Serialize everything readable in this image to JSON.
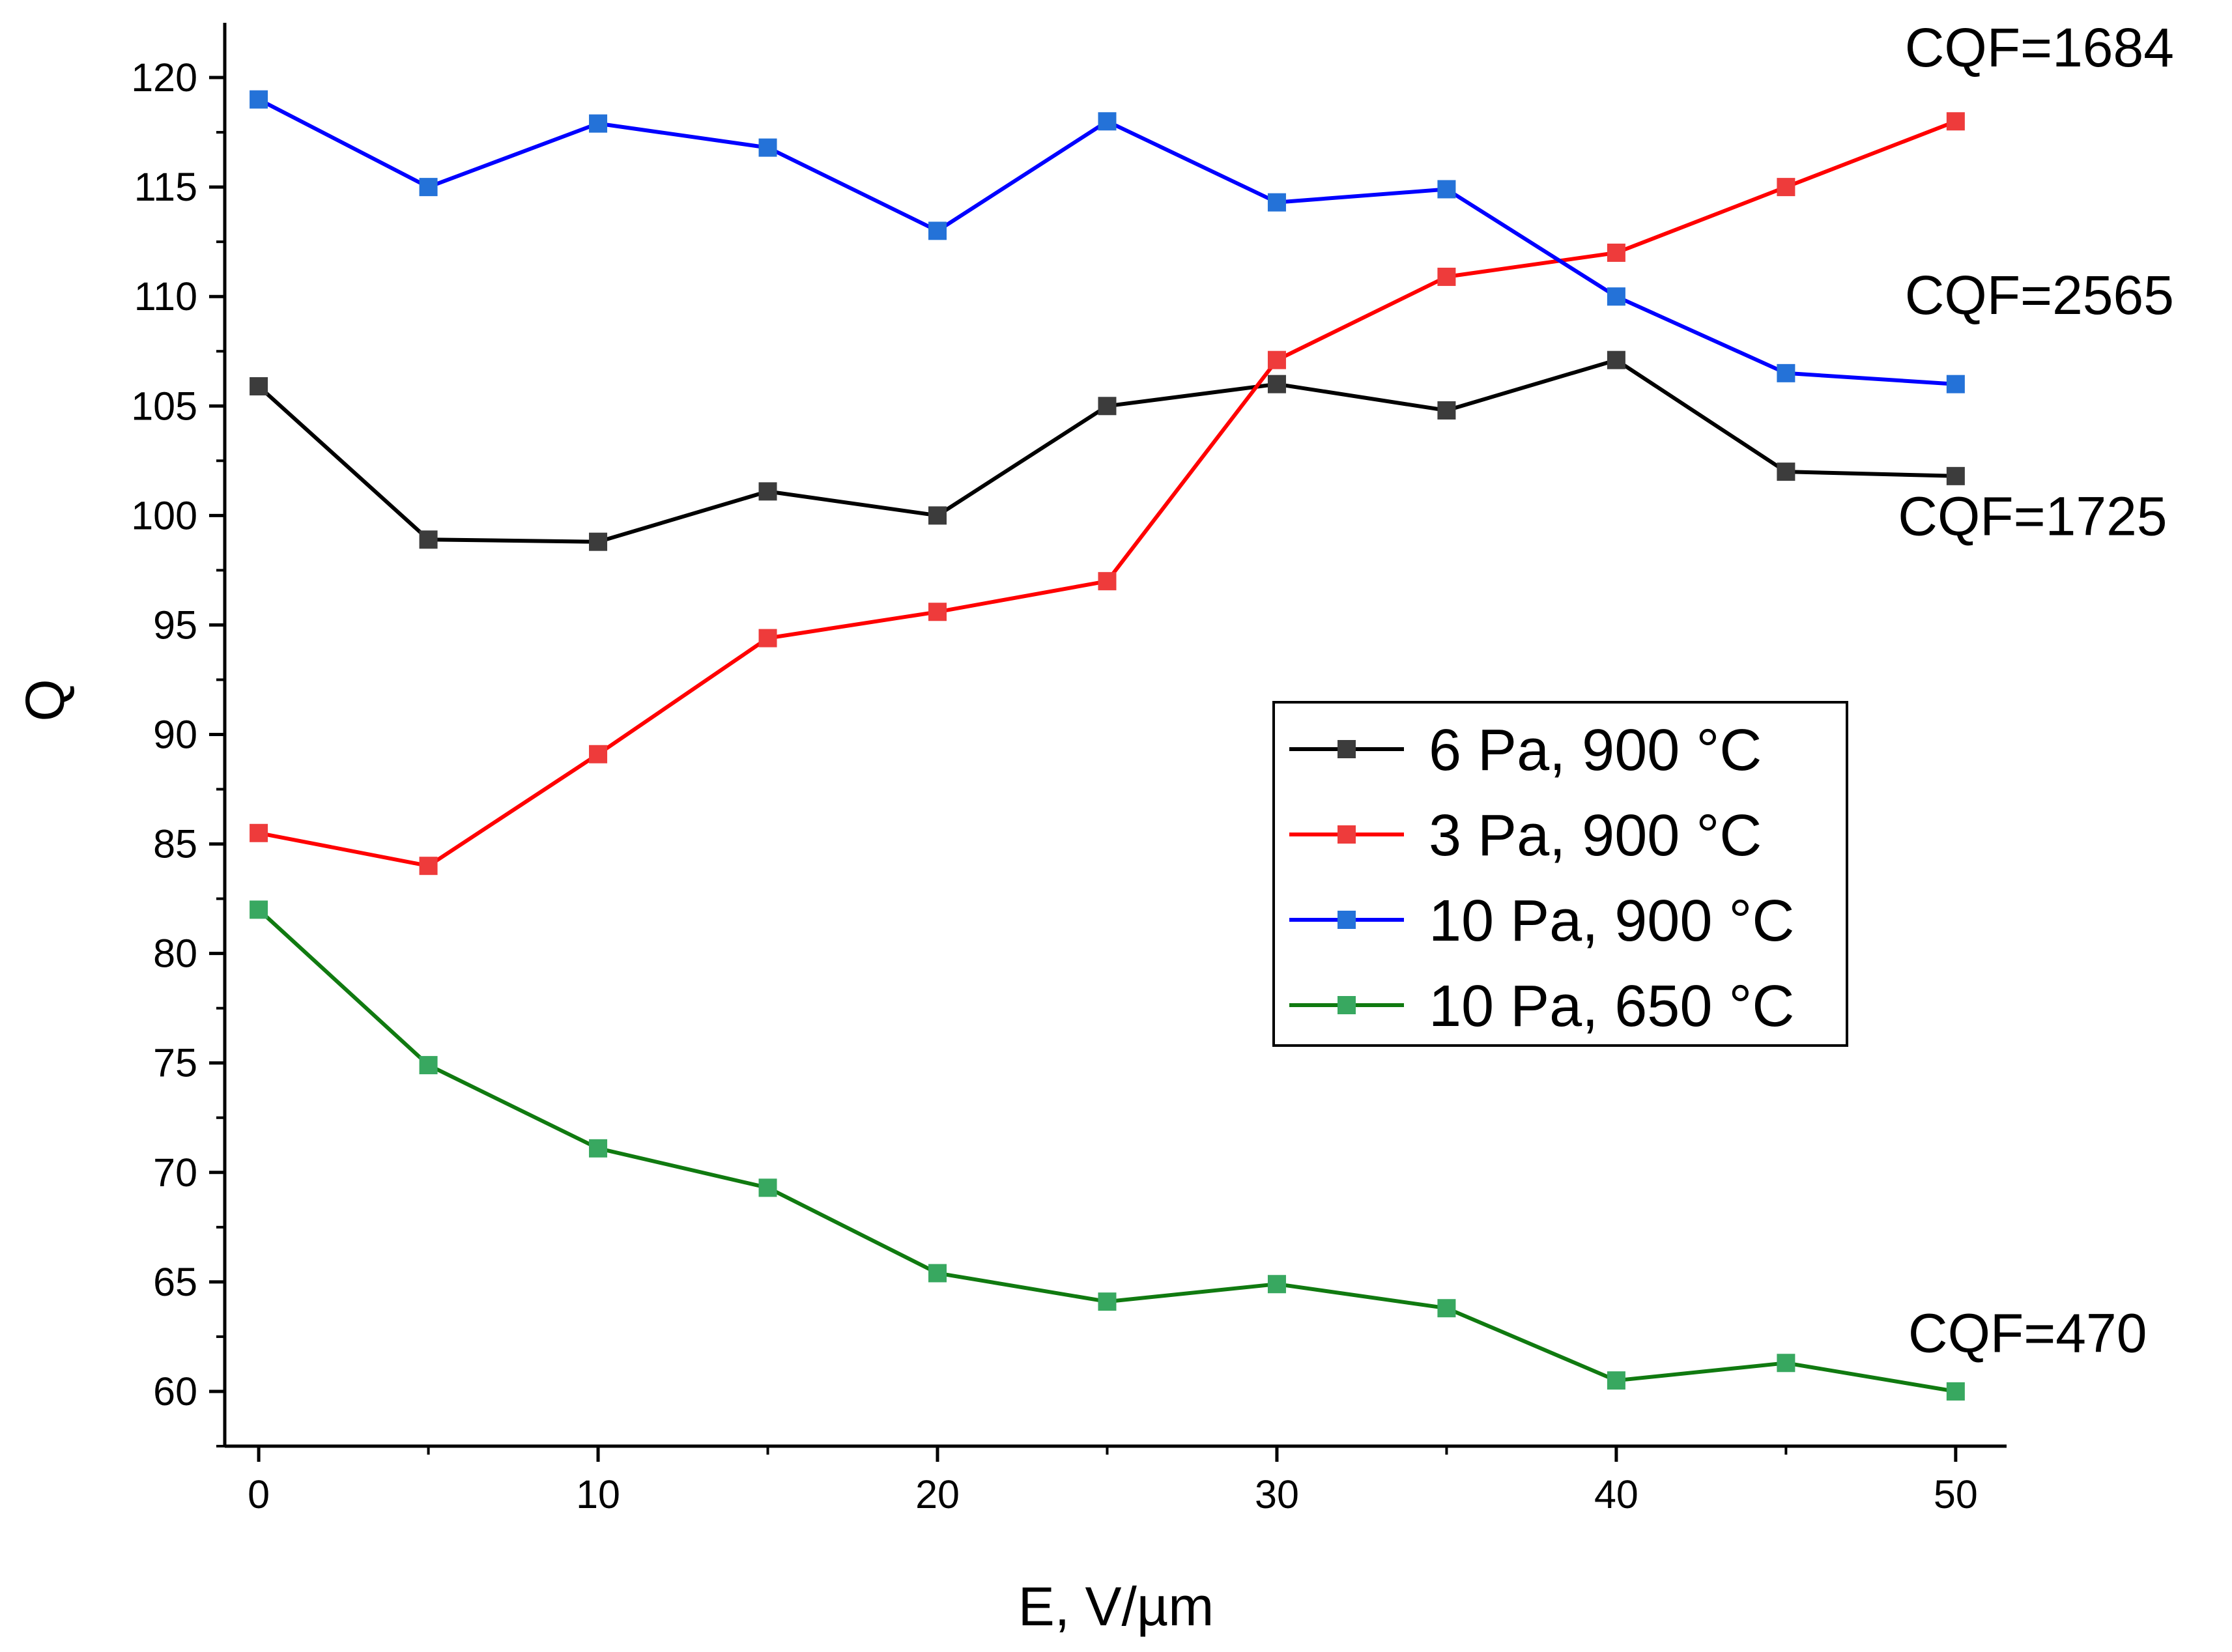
{
  "chart_data": {
    "type": "line",
    "title": "",
    "xlabel": "E, V/µm",
    "ylabel": "Q",
    "xlim": [
      -1,
      51.5
    ],
    "ylim": [
      57.5,
      122.5
    ],
    "xticks": [
      0,
      10,
      20,
      30,
      40,
      50
    ],
    "yticks": [
      60,
      65,
      70,
      75,
      80,
      85,
      90,
      95,
      100,
      105,
      110,
      115,
      120
    ],
    "x": [
      0,
      5,
      10,
      15,
      20,
      25,
      30,
      35,
      40,
      45,
      50
    ],
    "grid": false,
    "legend_position": "center-right",
    "series": [
      {
        "name": "6 Pa, 900 °C",
        "color": "#000000",
        "marker_color": "#3c3c3c",
        "values": [
          105.9,
          98.9,
          98.8,
          101.1,
          100.0,
          105.0,
          106.0,
          104.8,
          107.1,
          102.0,
          101.8
        ]
      },
      {
        "name": "3 Pa, 900 °C",
        "color": "#ff0000",
        "marker_color": "#ee3b3b",
        "values": [
          85.5,
          84.0,
          89.1,
          94.4,
          95.6,
          97.0,
          107.1,
          110.9,
          112.0,
          115.0,
          118.0
        ]
      },
      {
        "name": "10 Pa, 900 °C",
        "color": "#0000ff",
        "marker_color": "#2472d8",
        "values": [
          119.0,
          115.0,
          117.9,
          116.8,
          113.0,
          118.0,
          114.3,
          114.9,
          110.0,
          106.5,
          106.0
        ]
      },
      {
        "name": "10 Pa, 650 °C",
        "color": "#107a10",
        "marker_color": "#38a860",
        "values": [
          82.0,
          74.9,
          71.1,
          69.3,
          65.4,
          64.1,
          64.9,
          63.8,
          60.5,
          61.3,
          60.0
        ]
      }
    ],
    "annotations": [
      {
        "text": "CQF=1684",
        "x": 48.5,
        "y": 120.5
      },
      {
        "text": "CQF=2565",
        "x": 48.5,
        "y": 109.2
      },
      {
        "text": "CQF=1725",
        "x": 48.3,
        "y": 99.1
      },
      {
        "text": "CQF=470",
        "x": 48.6,
        "y": 61.8
      }
    ]
  }
}
